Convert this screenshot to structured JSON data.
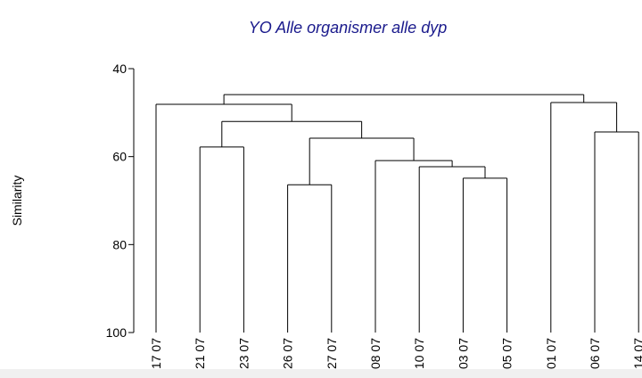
{
  "chart_data": {
    "type": "dendrogram",
    "title": "YO Alle organismer alle dyp",
    "y_label": "Similarity",
    "ylim": [
      40,
      100
    ],
    "yticks": [
      40,
      60,
      80,
      100
    ],
    "leaves": [
      "17 07",
      "21 07",
      "23 07",
      "26 07",
      "27 07",
      "08 07",
      "10 07",
      "03 07",
      "05 07",
      "01 07",
      "06 07",
      "14 07"
    ],
    "merges": [
      {
        "left": 3,
        "right": 4,
        "value": 66.4
      },
      {
        "left": 7,
        "right": 8,
        "value": 64.9
      },
      {
        "left": 6,
        "right": 13,
        "value": 62.3
      },
      {
        "left": 5,
        "right": 14,
        "value": 60.9
      },
      {
        "left": 1,
        "right": 2,
        "value": 57.8
      },
      {
        "left": 12,
        "right": 15,
        "value": 55.8
      },
      {
        "left": 10,
        "right": 11,
        "value": 54.4
      },
      {
        "left": 16,
        "right": 17,
        "value": 52.0
      },
      {
        "left": 0,
        "right": 19,
        "value": 48.1
      },
      {
        "left": 9,
        "right": 18,
        "value": 47.7
      },
      {
        "left": 20,
        "right": 21,
        "value": 45.9
      }
    ],
    "color": "#000000"
  }
}
